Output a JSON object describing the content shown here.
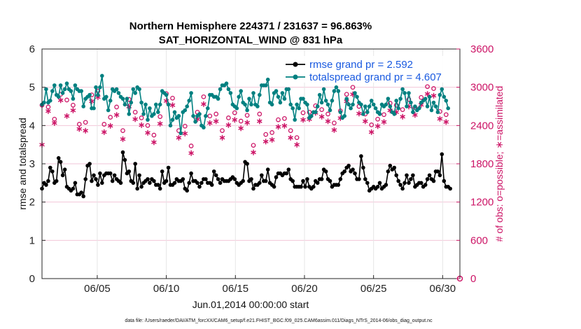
{
  "chart_data": {
    "type": "line",
    "title": "Northern Hemisphere 224371 / 231637 = 96.863%",
    "subtitle": "SAT_HORIZONTAL_WIND @ 831 hPa",
    "xlabel": "Jun.01,2014 00:00:00 start",
    "ylabel_left": "rmse and totalspread",
    "ylabel_right": "# of obs: o=possible; ∗=assimilated",
    "footer": "data file: /Users/raeder/DAI/ATM_forcXX/CAM6_setup/f.e21.FHIST_BGC.f09_025.CAM6assim.011/Diags_NTrS_2014-06/obs_diag_output.nc",
    "x_ticks": [
      {
        "day": 5,
        "label": "06/05"
      },
      {
        "day": 10,
        "label": "06/10"
      },
      {
        "day": 15,
        "label": "06/15"
      },
      {
        "day": 20,
        "label": "06/20"
      },
      {
        "day": 25,
        "label": "06/25"
      },
      {
        "day": 30,
        "label": "06/30"
      }
    ],
    "xlim": [
      1,
      31.25
    ],
    "ylim_left": [
      0,
      6
    ],
    "ylim_right": [
      0,
      3600
    ],
    "yticks_left": [
      "0",
      "1",
      "2",
      "3",
      "4",
      "5",
      "6"
    ],
    "yticks_right": [
      "0",
      "600",
      "1200",
      "1800",
      "2400",
      "3000",
      "3600"
    ],
    "grid": true,
    "legend_position": "top-right",
    "colors": {
      "rmse": "#000000",
      "spread": "#008080",
      "obs": "#cc1466",
      "legend_text": "#1a5ae0"
    },
    "series": [
      {
        "name": "rmse grand pr = 2.592",
        "axis": "left",
        "values": [
          2.35,
          2.5,
          2.45,
          2.55,
          2.9,
          2.8,
          2.5,
          2.55,
          3.15,
          3.05,
          2.7,
          2.85,
          2.4,
          2.35,
          2.3,
          2.35,
          2.5,
          2.2,
          2.2,
          2.25,
          2.15,
          2.6,
          2.95,
          3.0,
          2.55,
          2.7,
          2.6,
          2.45,
          2.75,
          2.5,
          2.7,
          2.75,
          2.75,
          2.75,
          2.55,
          2.7,
          2.6,
          2.55,
          2.5,
          3.3,
          3.1,
          2.75,
          2.8,
          2.55,
          2.5,
          3.0,
          2.35,
          2.7,
          2.4,
          2.5,
          2.55,
          2.6,
          2.5,
          2.6,
          2.55,
          2.45,
          2.45,
          2.35,
          2.8,
          2.5,
          2.55,
          2.9,
          2.45,
          2.45,
          2.5,
          2.6,
          2.55,
          2.55,
          2.6,
          2.35,
          2.3,
          2.5,
          2.75,
          2.55,
          2.55,
          2.5,
          2.4,
          2.5,
          2.6,
          2.6,
          2.5,
          2.5,
          2.45,
          2.8,
          2.7,
          2.6,
          2.5,
          2.6,
          2.55,
          2.55,
          2.55,
          2.6,
          2.65,
          2.6,
          2.5,
          2.45,
          2.5,
          2.55,
          3.05,
          3.0,
          2.55,
          2.6,
          2.35,
          2.45,
          2.45,
          2.5,
          2.7,
          2.55,
          2.55,
          2.85,
          2.5,
          2.45,
          2.4,
          2.65,
          2.75,
          2.75,
          2.7,
          2.75,
          2.75,
          2.85,
          2.6,
          2.55,
          2.4,
          2.4,
          2.4,
          2.4,
          2.55,
          2.4,
          2.6,
          2.4,
          2.35,
          2.4,
          2.55,
          2.5,
          2.6,
          2.6,
          2.85,
          2.8,
          2.6,
          2.55,
          2.4,
          2.45,
          2.45,
          2.45,
          2.6,
          2.75,
          2.8,
          2.9,
          2.95,
          2.8,
          2.85,
          2.75,
          2.6,
          2.6,
          3.2,
          2.9,
          2.6,
          2.5,
          2.3,
          2.35,
          2.4,
          2.35,
          2.4,
          2.5,
          2.35,
          2.4,
          2.45,
          2.8,
          2.95,
          2.85,
          2.9,
          2.7,
          2.55,
          2.45,
          2.35,
          2.5,
          2.7,
          2.5,
          2.6,
          2.7,
          2.4,
          2.45,
          2.5,
          2.5,
          2.4,
          2.45,
          2.6,
          2.7,
          2.6,
          2.55,
          2.8,
          2.8,
          2.7,
          3.25,
          2.55,
          2.4,
          2.4,
          2.35
        ]
      },
      {
        "name": "totalspread grand pr = 4.607",
        "axis": "left",
        "values": [
          4.55,
          4.6,
          4.95,
          4.6,
          4.65,
          4.9,
          5.05,
          4.8,
          4.75,
          5.05,
          4.85,
          4.95,
          5.1,
          4.95,
          4.9,
          4.7,
          5.05,
          4.95,
          4.9,
          4.9,
          4.5,
          4.7,
          4.75,
          4.8,
          4.45,
          4.45,
          5.0,
          4.8,
          5.0,
          5.3,
          4.7,
          4.75,
          4.4,
          4.65,
          4.95,
          4.9,
          4.95,
          4.85,
          4.75,
          4.7,
          4.55,
          4.7,
          4.3,
          4.6,
          4.95,
          4.85,
          5.0,
          4.95,
          4.6,
          4.3,
          4.55,
          4.15,
          4.45,
          4.25,
          4.3,
          4.55,
          4.35,
          4.55,
          4.9,
          4.85,
          4.8,
          4.55,
          4.0,
          4.15,
          4.35,
          4.2,
          4.25,
          3.8,
          4.35,
          4.4,
          4.5,
          4.65,
          4.85,
          4.25,
          4.1,
          4.25,
          4.3,
          4.0,
          3.95,
          4.25,
          4.45,
          4.8,
          4.8,
          4.75,
          4.75,
          4.7,
          4.95,
          5.05,
          5.05,
          5.1,
          4.95,
          4.85,
          4.55,
          4.5,
          4.45,
          4.75,
          4.9,
          4.6,
          4.55,
          4.4,
          4.7,
          4.55,
          4.85,
          4.55,
          4.5,
          4.8,
          5.05,
          5.05,
          5.05,
          5.2,
          4.6,
          4.55,
          4.85,
          4.9,
          4.75,
          4.6,
          4.85,
          4.7,
          4.95,
          4.95,
          4.55,
          4.45,
          4.15,
          4.55,
          4.45,
          4.7,
          4.7,
          4.6,
          4.55,
          4.2,
          4.25,
          4.35,
          4.35,
          4.5,
          4.8,
          4.6,
          4.95,
          4.65,
          4.55,
          4.4,
          4.65,
          4.9,
          5.0,
          4.9,
          4.35,
          4.2,
          4.25,
          4.7,
          4.55,
          4.45,
          4.55,
          4.85,
          4.75,
          4.6,
          4.55,
          4.3,
          4.5,
          4.35,
          4.5,
          4.65,
          4.55,
          4.45,
          4.35,
          4.3,
          4.55,
          4.5,
          4.55,
          4.7,
          4.5,
          4.35,
          4.3,
          4.65,
          4.45,
          4.7,
          4.95,
          4.85,
          4.5,
          4.85,
          4.6,
          4.35,
          4.5,
          4.4,
          4.45,
          4.6,
          4.65,
          4.7,
          4.5,
          4.75,
          4.4,
          4.6,
          4.5,
          4.35,
          4.8,
          4.95,
          4.75,
          4.65,
          4.45
        ]
      },
      {
        "name": "possible observations",
        "axis": "right",
        "marker": "o",
        "values": [
          2720,
          2730,
          2700,
          2690,
          3050,
          2560,
          2500,
          2610,
          3040,
          2890,
          2730,
          2890,
          2800,
          2600,
          2530,
          2720,
          2780,
          2640,
          2420,
          3120,
          2780,
          2450,
          2420,
          2600,
          2880,
          2680,
          3050,
          2940,
          2820,
          2790,
          2420,
          2250,
          2780,
          2530,
          2670,
          2540,
          2690,
          2760,
          2600,
          2320,
          2350,
          2650,
          2810,
          2780,
          2480,
          2610,
          2580,
          2300,
          2520,
          2300,
          2210,
          2400,
          2060,
          2180,
          2250,
          2260,
          2500,
          2540,
          2700,
          2640,
          2900,
          2780,
          2720,
          2830,
          2160,
          2410,
          2320,
          2220,
          2090,
          2390,
          2270,
          1990,
          2080,
          2430,
          2550,
          2610,
          2760,
          3000,
          2850,
          2720,
          2610,
          2550,
          2260,
          2490,
          2580,
          2340,
          2290,
          2320,
          2480,
          2450,
          2520,
          2440,
          2570,
          2600,
          2490,
          2430,
          2470,
          2530,
          2320,
          2560,
          2380,
          2110,
          2090,
          2320,
          2410,
          2580,
          2440,
          2330,
          2260,
          2480,
          2380,
          2290,
          2470,
          2750,
          2490,
          2560,
          2630,
          2510,
          2600,
          2450,
          2320,
          2220,
          2280,
          2210,
          2290,
          2230,
          2600,
          2780,
          2530,
          2610,
          2640,
          2670,
          2710,
          2830,
          2660,
          2650,
          2560,
          2430,
          2580,
          2570,
          2490,
          2440,
          2390,
          2550,
          2630,
          2740,
          2820,
          2890,
          2950,
          2940,
          3000,
          2980,
          2920,
          2700,
          2560,
          2470,
          2580,
          2460,
          2520,
          2410,
          2450,
          2380,
          2500,
          2560,
          2620,
          2570,
          2510,
          2800,
          2750,
          2660,
          2640,
          2720,
          2650,
          2610,
          2650,
          2700,
          2720,
          2810,
          2790,
          2720,
          2680,
          2640,
          2710,
          2840,
          2870,
          2990,
          3010,
          3000,
          2970,
          2980,
          2800,
          2700,
          2620,
          2550,
          2590,
          2570
        ]
      },
      {
        "name": "assimilated observations",
        "axis": "right",
        "marker": "*",
        "values": [
          2100,
          2260,
          2580,
          2630,
          2860,
          2640,
          2440,
          2500,
          2870,
          2800,
          2600,
          2700,
          2550,
          2420,
          2400,
          2640,
          2690,
          2600,
          2350,
          2960,
          2650,
          2320,
          2300,
          2520,
          2780,
          2560,
          2960,
          2850,
          2710,
          2660,
          2300,
          2120,
          2680,
          2400,
          2560,
          2430,
          2570,
          2680,
          2480,
          2190,
          2230,
          2530,
          2700,
          2670,
          2360,
          2500,
          2470,
          2190,
          2410,
          2190,
          2090,
          2290,
          1950,
          2070,
          2140,
          2150,
          2390,
          2430,
          2590,
          2530,
          2790,
          2670,
          2610,
          2720,
          2050,
          2300,
          2210,
          2110,
          1980,
          2280,
          2160,
          1880,
          1970,
          2320,
          2440,
          2500,
          2650,
          2890,
          2740,
          2610,
          2500,
          2440,
          2150,
          2380,
          2470,
          2230,
          2180,
          2210,
          2370,
          2340,
          2410,
          2330,
          2460,
          2490,
          2380,
          2320,
          2360,
          2420,
          2210,
          2450,
          2270,
          2000,
          1980,
          2210,
          2300,
          2470,
          2330,
          2220,
          2150,
          2370,
          2270,
          2180,
          2360,
          2640,
          2380,
          2450,
          2520,
          2400,
          2490,
          2340,
          2210,
          2110,
          2170,
          2100,
          2180,
          2120,
          2490,
          2670,
          2420,
          2500,
          2530,
          2560,
          2600,
          2720,
          2550,
          2540,
          2450,
          2320,
          2470,
          2460,
          2380,
          2330,
          2280,
          2440,
          2520,
          2630,
          2710,
          2780,
          2840,
          2830,
          2890,
          2870,
          2810,
          2590,
          2450,
          2360,
          2470,
          2350,
          2410,
          2300,
          2340,
          2270,
          2390,
          2450,
          2510,
          2460,
          2400,
          2690,
          2640,
          2550,
          2530,
          2610,
          2540,
          2500,
          2540,
          2590,
          2610,
          2700,
          2680,
          2610,
          2570,
          2530,
          2600,
          2730,
          2760,
          2880,
          2900,
          2890,
          2860,
          2870,
          2690,
          2590,
          2510,
          2440,
          2480,
          2460
        ]
      }
    ]
  }
}
